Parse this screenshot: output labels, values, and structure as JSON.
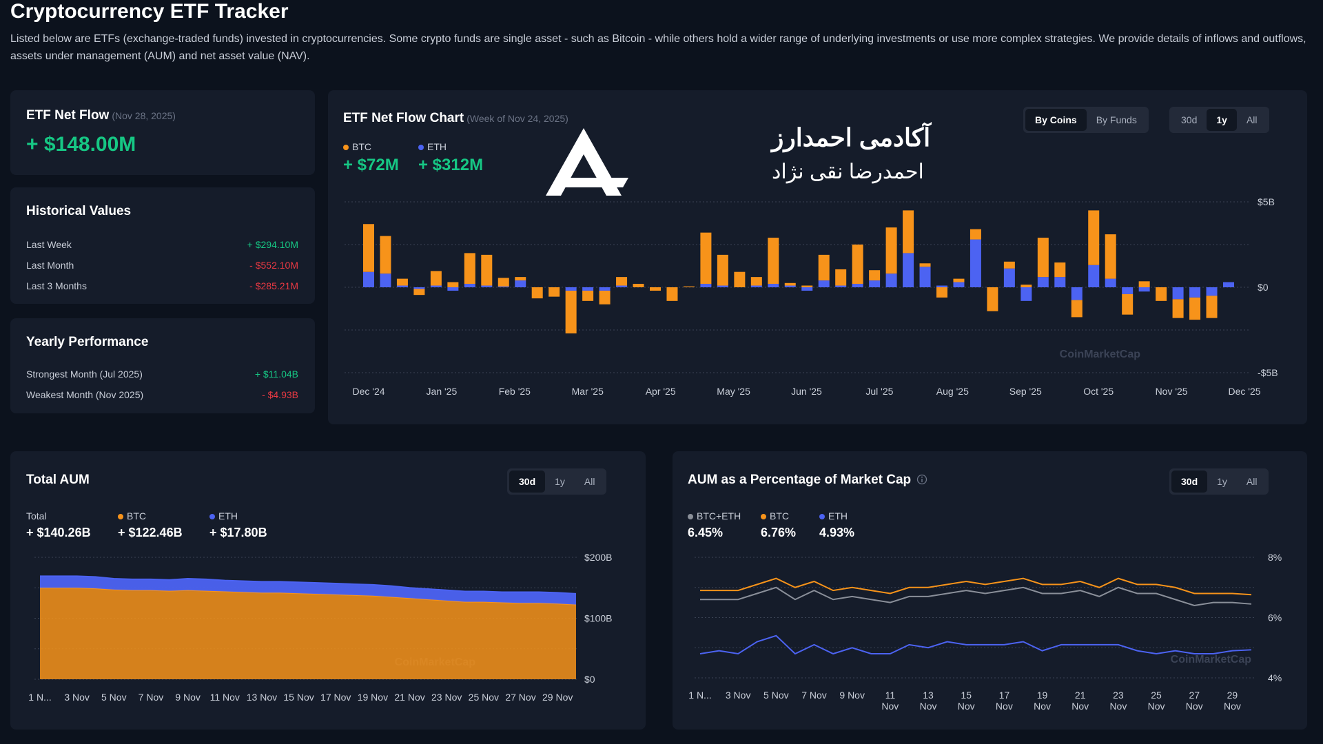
{
  "header": {
    "title": "Cryptocurrency ETF Tracker",
    "description": "Listed below are ETFs (exchange-traded funds) invested in cryptocurrencies. Some crypto funds are single asset - such as Bitcoin - while others hold a wider range of underlying investments or use more complex strategies. We provide details of inflows and outflows, assets under management (AUM) and net asset value (NAV)."
  },
  "net_flow": {
    "title": "ETF Net Flow",
    "date": "(Nov 28, 2025)",
    "value": "+ $148.00M"
  },
  "historical": {
    "title": "Historical Values",
    "rows": [
      [
        "Last Week",
        "+ $294.10M"
      ],
      [
        "Last Month",
        "- $552.10M"
      ],
      [
        "Last 3 Months",
        "- $285.21M"
      ]
    ]
  },
  "yearly": {
    "title": "Yearly Performance",
    "rows": [
      [
        "Strongest Month (Jul 2025)",
        "+ $11.04B"
      ],
      [
        "Weakest Month (Nov 2025)",
        "- $4.93B"
      ]
    ]
  },
  "watermark": [
    "آکادمی احمدارز",
    "احمدرضا نقی نژاد"
  ],
  "chart_data": [
    {
      "type": "bar",
      "stacked": true,
      "title": "ETF Net Flow Chart",
      "subtitle": "(Week of Nov 24, 2025)",
      "views": [
        "By Coins",
        "By Funds"
      ],
      "active_view": 0,
      "ranges": [
        "30d",
        "1y",
        "All"
      ],
      "active_range": 1,
      "legend_values": [
        "+ $72M",
        "+ $312M"
      ],
      "x_tick_labels": [
        "Dec '24",
        "Jan '25",
        "Feb '25",
        "Mar '25",
        "Apr '25",
        "May '25",
        "Jun '25",
        "Jul '25",
        "Aug '25",
        "Sep '25",
        "Oct '25",
        "Nov '25",
        "Dec '25"
      ],
      "ylim": [
        -5,
        5
      ],
      "yticks": [
        {
          "value": 5,
          "label": "$5B"
        },
        {
          "value": 0,
          "label": "$0"
        },
        {
          "value": -5,
          "label": "-$5B"
        }
      ],
      "minor_grid": [
        2.5,
        -2.5
      ],
      "grid": true,
      "watermark": "CoinMarketCap",
      "series": [
        {
          "name": "BTC",
          "color": "#f7931a",
          "values": [
            2.8,
            2.2,
            0.4,
            -0.35,
            0.85,
            0.3,
            1.8,
            1.8,
            0.5,
            0.2,
            -0.65,
            -0.55,
            -2.5,
            -0.6,
            -0.8,
            0.5,
            0.2,
            -0.2,
            -0.8,
            0.05,
            3.0,
            1.8,
            0.9,
            0.5,
            2.7,
            0.15,
            0.1,
            1.5,
            0.95,
            2.3,
            0.6,
            2.7,
            2.5,
            0.2,
            -0.6,
            0.2,
            0.6,
            -1.4,
            0.4,
            0.15,
            2.3,
            0.85,
            -1.0,
            3.2,
            2.6,
            -1.2,
            0.35,
            -0.8,
            -1.1,
            -1.3,
            -1.3,
            0
          ]
        },
        {
          "name": "ETH",
          "color": "#4c63f2",
          "values": [
            0.9,
            0.8,
            0.1,
            -0.1,
            0.1,
            -0.2,
            0.2,
            0.1,
            0.05,
            0.4,
            0,
            0,
            -0.2,
            -0.2,
            -0.2,
            0.1,
            0,
            0,
            0,
            0,
            0.2,
            0.1,
            0,
            0.1,
            0.2,
            0.1,
            -0.2,
            0.4,
            0.1,
            0.2,
            0.4,
            0.8,
            2.0,
            1.2,
            0.1,
            0.3,
            2.8,
            0,
            1.1,
            -0.8,
            0.6,
            0.6,
            -0.75,
            1.3,
            0.5,
            -0.4,
            -0.25,
            0,
            -0.7,
            -0.6,
            -0.5,
            0.3
          ]
        }
      ]
    },
    {
      "type": "area",
      "stacked": true,
      "title": "Total AUM",
      "ranges": [
        "30d",
        "1y",
        "All"
      ],
      "active_range": 0,
      "total": {
        "name": "Total",
        "value": "+ $140.26B"
      },
      "legend_values": [
        "+ $122.46B",
        "+ $17.80B"
      ],
      "categories": [
        "1 N...",
        null,
        "3 Nov",
        null,
        "5 Nov",
        null,
        "7 Nov",
        null,
        "9 Nov",
        null,
        "11 Nov",
        null,
        "13 Nov",
        null,
        "15 Nov",
        null,
        "17 Nov",
        null,
        "19 Nov",
        null,
        "21 Nov",
        null,
        "23 Nov",
        null,
        "25 Nov",
        null,
        "27 Nov",
        null,
        "29 Nov",
        null
      ],
      "ylim": [
        0,
        200
      ],
      "yticks": [
        {
          "value": 200,
          "label": "$200B"
        },
        {
          "value": 100,
          "label": "$100B"
        },
        {
          "value": 0,
          "label": "$0"
        }
      ],
      "minor_grid": [
        150,
        50
      ],
      "grid": true,
      "watermark": "CoinMarketCap",
      "series": [
        {
          "name": "BTC",
          "color": "#f7931a",
          "values": [
            150,
            150,
            150,
            149,
            147,
            146,
            146,
            145,
            146,
            145,
            144,
            143,
            142,
            142,
            141,
            140,
            139,
            138,
            137,
            135,
            133,
            131,
            129,
            127,
            127,
            126,
            125,
            125,
            124,
            122.46
          ]
        },
        {
          "name": "ETH",
          "color": "#4c63f2",
          "values": [
            19,
            19,
            19,
            19,
            18,
            18,
            18,
            18,
            19,
            19,
            18,
            18,
            18,
            18,
            18,
            18,
            18,
            18,
            18,
            18,
            17,
            17,
            17,
            17,
            17,
            17,
            18,
            18,
            18,
            17.8
          ]
        }
      ]
    },
    {
      "type": "line",
      "title": "AUM as a Percentage of Market Cap",
      "ranges": [
        "30d",
        "1y",
        "All"
      ],
      "active_range": 0,
      "legend_values": [
        "6.45%",
        "6.76%",
        "4.93%"
      ],
      "categories": [
        "1 N...",
        null,
        "3 Nov",
        null,
        "5 Nov",
        null,
        "7 Nov",
        null,
        "9 Nov",
        null,
        "11 Nov",
        null,
        "13 Nov",
        null,
        "15 Nov",
        null,
        "17 Nov",
        null,
        "19 Nov",
        null,
        "21 Nov",
        null,
        "23 Nov",
        null,
        "25 Nov",
        null,
        "27 Nov",
        null,
        "29 Nov",
        null
      ],
      "ylim": [
        4,
        8
      ],
      "yticks": [
        {
          "value": 8,
          "label": "8%"
        },
        {
          "value": 6,
          "label": "6%"
        },
        {
          "value": 4,
          "label": "4%"
        }
      ],
      "minor_grid": [
        7,
        5
      ],
      "grid": true,
      "watermark": "CoinMarketCap",
      "series": [
        {
          "name": "BTC+ETH",
          "color": "#8a8f99",
          "values": [
            6.6,
            6.6,
            6.6,
            6.8,
            7.0,
            6.6,
            6.9,
            6.6,
            6.7,
            6.6,
            6.5,
            6.7,
            6.7,
            6.8,
            6.9,
            6.8,
            6.9,
            7.0,
            6.8,
            6.8,
            6.9,
            6.7,
            7.0,
            6.8,
            6.8,
            6.6,
            6.4,
            6.5,
            6.5,
            6.45
          ]
        },
        {
          "name": "BTC",
          "color": "#f7931a",
          "values": [
            6.9,
            6.9,
            6.9,
            7.1,
            7.3,
            7.0,
            7.2,
            6.9,
            7.0,
            6.9,
            6.8,
            7.0,
            7.0,
            7.1,
            7.2,
            7.1,
            7.2,
            7.3,
            7.1,
            7.1,
            7.2,
            7.0,
            7.3,
            7.1,
            7.1,
            7.0,
            6.8,
            6.8,
            6.8,
            6.76
          ]
        },
        {
          "name": "ETH",
          "color": "#4c63f2",
          "values": [
            4.8,
            4.9,
            4.8,
            5.2,
            5.4,
            4.8,
            5.1,
            4.8,
            5.0,
            4.8,
            4.8,
            5.1,
            5.0,
            5.2,
            5.1,
            5.1,
            5.1,
            5.2,
            4.9,
            5.1,
            5.1,
            5.1,
            5.1,
            4.9,
            4.8,
            4.9,
            4.8,
            4.8,
            4.9,
            4.93
          ]
        }
      ]
    }
  ]
}
